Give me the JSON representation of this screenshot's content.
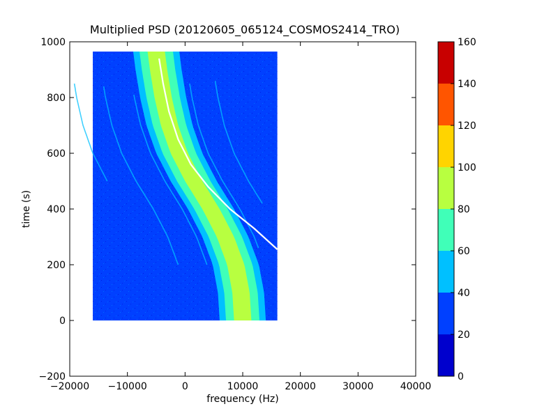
{
  "chart_data": {
    "type": "heatmap",
    "title": "Multiplied PSD (20120605_065124_COSMOS2414_TRO)",
    "xlabel": "frequency (Hz)",
    "ylabel": "time (s)",
    "xlim": [
      -20000,
      40000
    ],
    "ylim": [
      -200,
      1000
    ],
    "x_ticks": [
      -20000,
      -10000,
      0,
      10000,
      20000,
      30000,
      40000
    ],
    "x_tick_labels": [
      "−20000",
      "−10000",
      "0",
      "10000",
      "20000",
      "30000",
      "40000"
    ],
    "y_ticks": [
      -200,
      0,
      200,
      400,
      600,
      800,
      1000
    ],
    "y_tick_labels": [
      "−200",
      "0",
      "200",
      "400",
      "600",
      "800",
      "1000"
    ],
    "image_extent": {
      "x": [
        -16000,
        16000
      ],
      "y": [
        0,
        965
      ]
    },
    "background_level": 25,
    "colorbar": {
      "ticks": [
        0,
        20,
        40,
        60,
        80,
        100,
        120,
        140,
        160
      ],
      "tick_labels": [
        "0",
        "20",
        "40",
        "60",
        "80",
        "100",
        "120",
        "140",
        "160"
      ],
      "bands": [
        {
          "from": 0,
          "to": 20,
          "color": "#0000cd"
        },
        {
          "from": 20,
          "to": 40,
          "color": "#0040ff"
        },
        {
          "from": 40,
          "to": 60,
          "color": "#00c0ff"
        },
        {
          "from": 60,
          "to": 80,
          "color": "#40ffb8"
        },
        {
          "from": 80,
          "to": 100,
          "color": "#b8ff40"
        },
        {
          "from": 100,
          "to": 120,
          "color": "#ffd400"
        },
        {
          "from": 120,
          "to": 140,
          "color": "#ff5500"
        },
        {
          "from": 140,
          "to": 160,
          "color": "#c80000"
        }
      ]
    },
    "main_trace": {
      "center_freq_at_time": [
        {
          "t": 0,
          "f": 10000
        },
        {
          "t": 100,
          "f": 9700
        },
        {
          "t": 200,
          "f": 8800
        },
        {
          "t": 300,
          "f": 7000
        },
        {
          "t": 400,
          "f": 4500
        },
        {
          "t": 500,
          "f": 1500
        },
        {
          "t": 600,
          "f": -1000
        },
        {
          "t": 700,
          "f": -2700
        },
        {
          "t": 800,
          "f": -3800
        },
        {
          "t": 900,
          "f": -4600
        },
        {
          "t": 965,
          "f": -5000
        }
      ],
      "bands": [
        {
          "half_width_hz": 4000,
          "level": 50
        },
        {
          "half_width_hz": 2900,
          "level": 70
        },
        {
          "half_width_hz": 1500,
          "level": 90
        }
      ]
    },
    "white_curve": [
      {
        "t": 255,
        "f": 16000
      },
      {
        "t": 330,
        "f": 12000
      },
      {
        "t": 400,
        "f": 7800
      },
      {
        "t": 480,
        "f": 4000
      },
      {
        "t": 560,
        "f": 1000
      },
      {
        "t": 650,
        "f": -1200
      },
      {
        "t": 750,
        "f": -2800
      },
      {
        "t": 850,
        "f": -3800
      },
      {
        "t": 940,
        "f": -4500
      }
    ],
    "faint_traces": [
      {
        "offset_hz": -15000,
        "t_range": [
          500,
          850
        ]
      },
      {
        "offset_hz": -10000,
        "t_range": [
          200,
          840
        ]
      },
      {
        "offset_hz": -5000,
        "t_range": [
          200,
          810
        ]
      },
      {
        "offset_hz": 5000,
        "t_range": [
          260,
          850
        ]
      },
      {
        "offset_hz": 9500,
        "t_range": [
          420,
          860
        ]
      }
    ]
  }
}
